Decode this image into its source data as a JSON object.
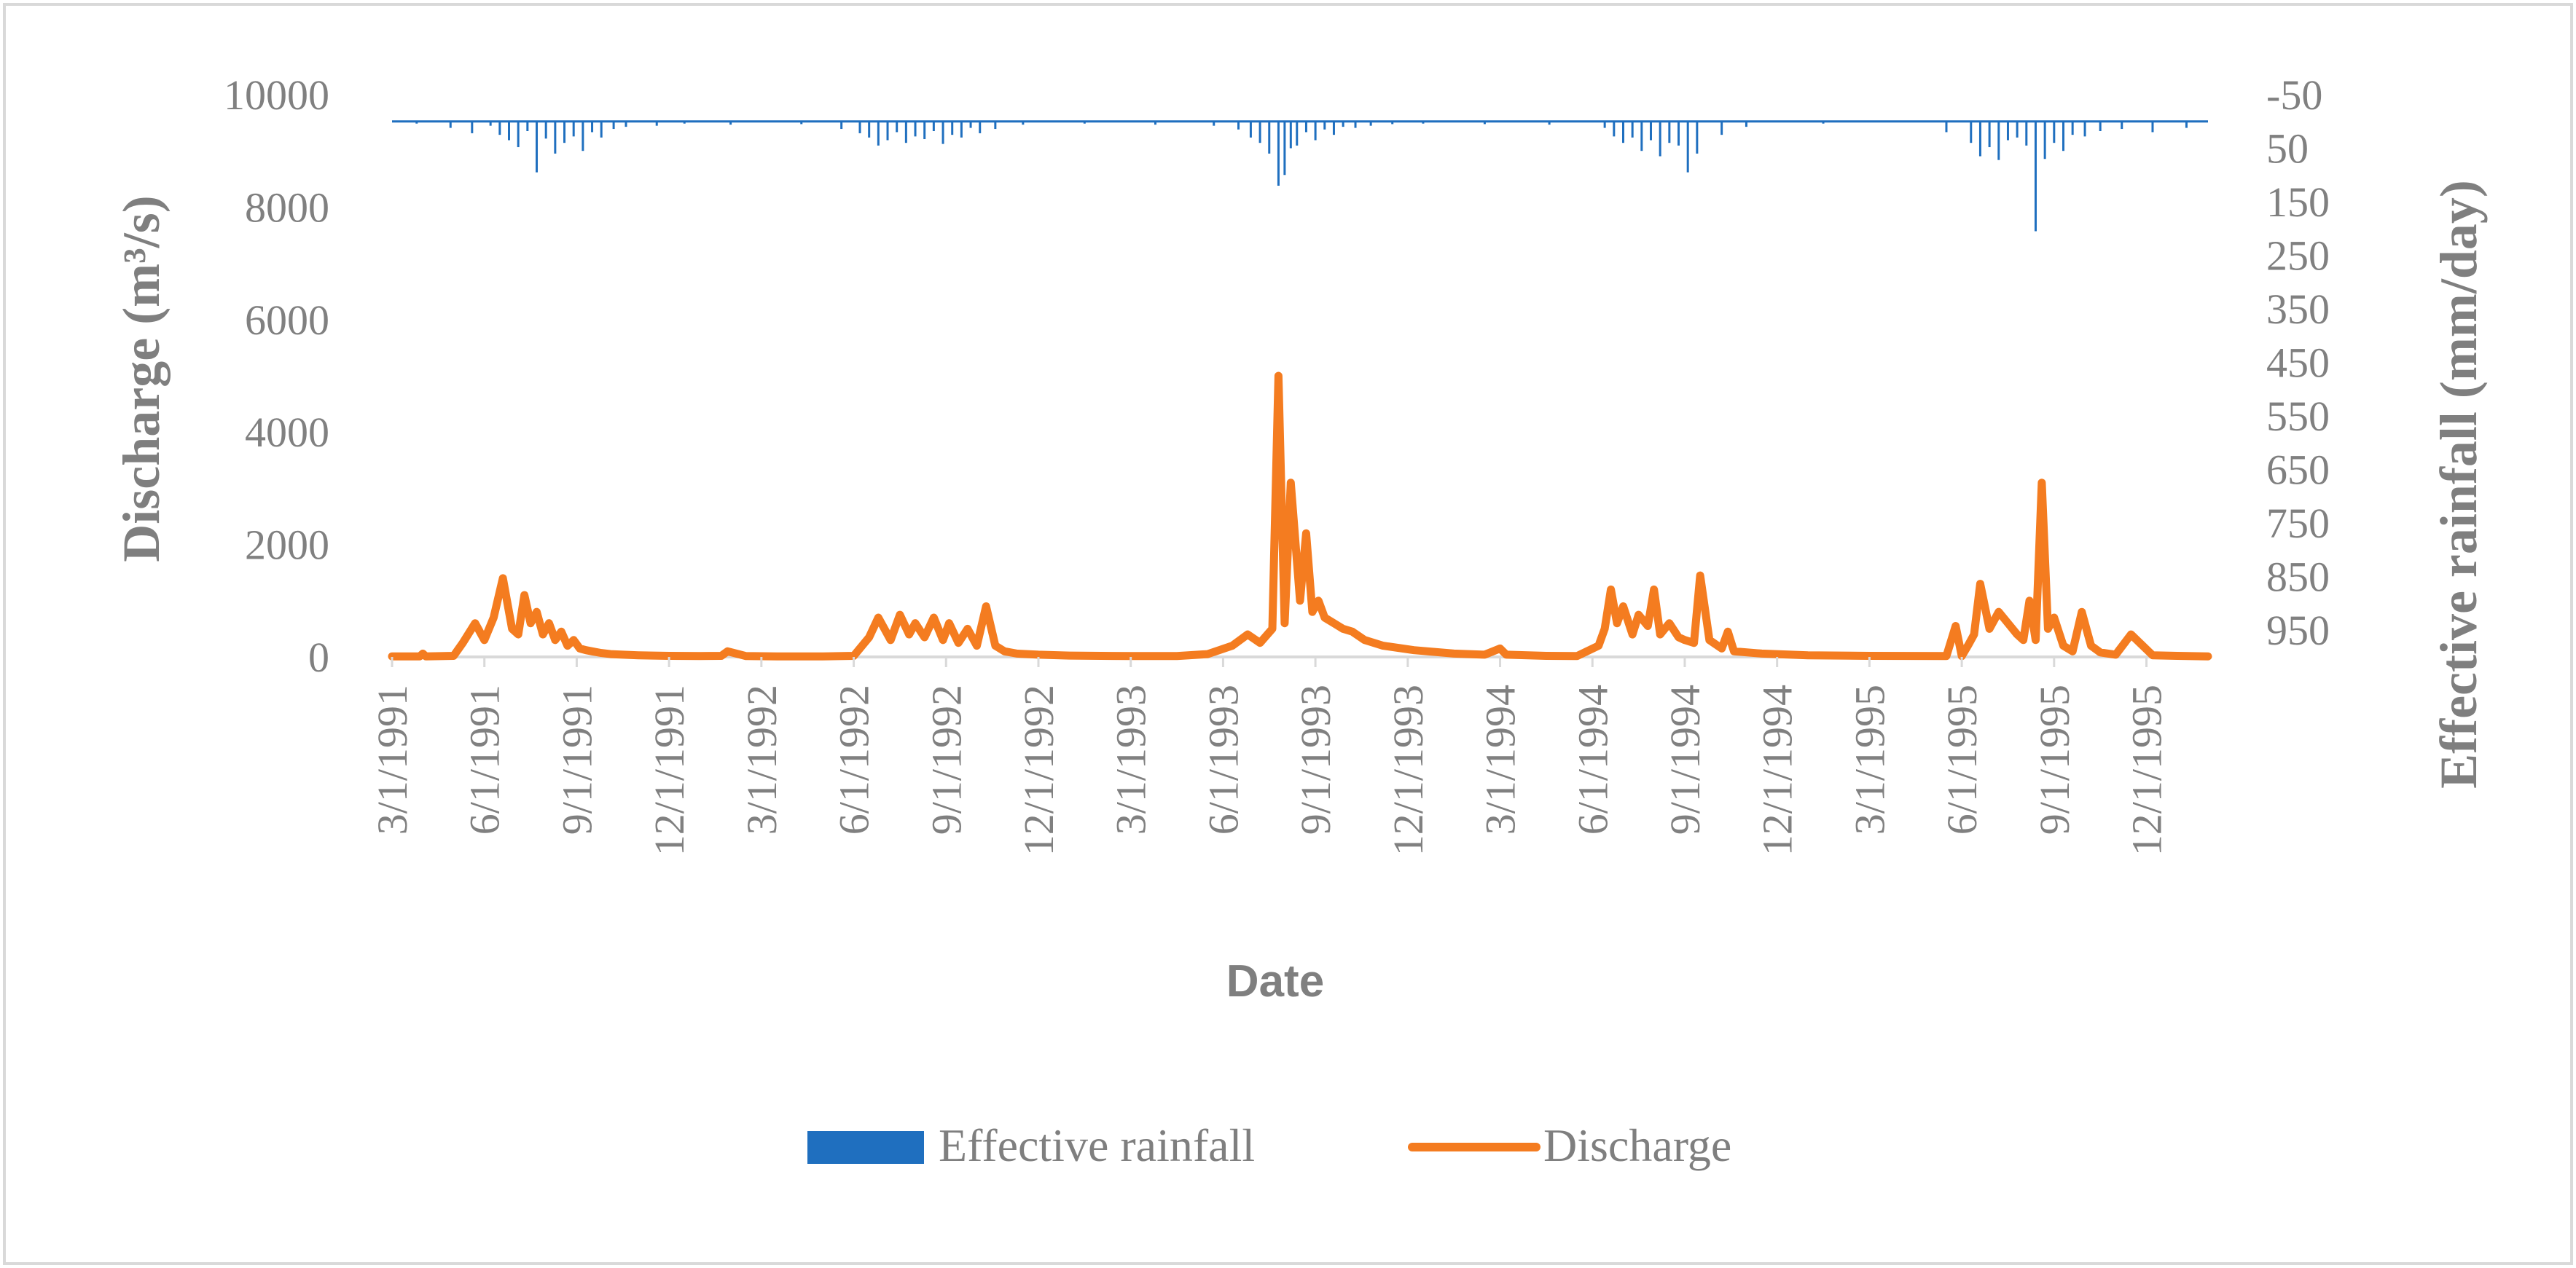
{
  "chart_data": {
    "type": "line",
    "title": "",
    "xlabel": "Date",
    "ylabel": "Discharge (m³/s)",
    "y2label": "Effective rainfall (mm/day)",
    "ylim": [
      0,
      10000
    ],
    "y2lim": [
      -50,
      1000
    ],
    "y2_inverted": true,
    "yticks": [
      "0",
      "2000",
      "4000",
      "6000",
      "8000",
      "10000"
    ],
    "y2ticks": [
      "-50",
      "50",
      "150",
      "250",
      "350",
      "450",
      "550",
      "650",
      "750",
      "850",
      "950"
    ],
    "xticks": [
      "3/1/1991",
      "6/1/1991",
      "9/1/1991",
      "12/1/1991",
      "3/1/1992",
      "6/1/1992",
      "9/1/1992",
      "12/1/1992",
      "3/1/1993",
      "6/1/1993",
      "9/1/1993",
      "12/1/1993",
      "3/1/1994",
      "6/1/1994",
      "9/1/1994",
      "12/1/1994",
      "3/1/1995",
      "6/1/1995",
      "9/1/1995",
      "12/1/1995"
    ],
    "xrange_months": [
      0,
      59
    ],
    "grid": false,
    "legend_position": "bottom",
    "series": [
      {
        "name": "Effective rainfall",
        "kind": "bar",
        "axis": "right",
        "color": "#1f6fbf",
        "x_months": [
          0.8,
          1.9,
          2.6,
          3.2,
          3.5,
          3.8,
          4.1,
          4.4,
          4.7,
          5.0,
          5.3,
          5.6,
          5.9,
          6.2,
          6.5,
          6.8,
          7.2,
          7.6,
          8.6,
          9.5,
          11.0,
          13.3,
          14.6,
          15.2,
          15.5,
          15.8,
          16.1,
          16.4,
          16.7,
          17.0,
          17.3,
          17.6,
          17.9,
          18.2,
          18.5,
          18.8,
          19.1,
          19.6,
          20.5,
          22.5,
          24.8,
          26.7,
          27.5,
          27.9,
          28.2,
          28.5,
          28.8,
          29.0,
          29.2,
          29.4,
          29.7,
          30.0,
          30.3,
          30.6,
          30.9,
          31.3,
          31.8,
          32.5,
          33.5,
          35.5,
          37.6,
          39.4,
          39.7,
          40.0,
          40.3,
          40.6,
          40.9,
          41.2,
          41.5,
          41.8,
          42.1,
          42.4,
          43.2,
          44.0,
          46.5,
          50.5,
          51.3,
          51.6,
          51.9,
          52.2,
          52.5,
          52.8,
          53.1,
          53.4,
          53.7,
          54.0,
          54.3,
          54.6,
          55.0,
          55.5,
          56.2,
          57.2,
          58.3
        ],
        "values": [
          4,
          12,
          22,
          8,
          25,
          35,
          48,
          18,
          95,
          32,
          60,
          40,
          28,
          55,
          20,
          30,
          14,
          10,
          8,
          4,
          6,
          5,
          14,
          22,
          30,
          45,
          35,
          20,
          40,
          28,
          33,
          18,
          42,
          25,
          30,
          12,
          22,
          14,
          6,
          4,
          6,
          8,
          15,
          30,
          40,
          60,
          120,
          100,
          50,
          45,
          20,
          35,
          15,
          25,
          10,
          12,
          8,
          5,
          4,
          5,
          6,
          12,
          28,
          40,
          30,
          55,
          35,
          65,
          40,
          45,
          95,
          60,
          25,
          10,
          4,
          20,
          40,
          65,
          48,
          72,
          35,
          30,
          45,
          205,
          70,
          40,
          55,
          25,
          28,
          18,
          14,
          20,
          12
        ]
      },
      {
        "name": "Discharge",
        "kind": "line",
        "axis": "left",
        "color": "#f47c20",
        "x_months": [
          0.0,
          0.9,
          1.0,
          1.1,
          2.0,
          2.3,
          2.7,
          3.0,
          3.3,
          3.6,
          3.9,
          4.1,
          4.3,
          4.5,
          4.7,
          4.9,
          5.1,
          5.3,
          5.5,
          5.7,
          5.9,
          6.1,
          6.3,
          6.5,
          6.8,
          7.1,
          7.5,
          8.0,
          9.0,
          10.0,
          10.7,
          10.9,
          11.5,
          12.5,
          14.0,
          15.0,
          15.5,
          15.8,
          16.2,
          16.5,
          16.8,
          17.0,
          17.3,
          17.6,
          17.9,
          18.1,
          18.4,
          18.7,
          19.0,
          19.3,
          19.6,
          19.9,
          20.3,
          21.0,
          22.0,
          24.0,
          25.5,
          26.5,
          27.3,
          27.8,
          28.2,
          28.6,
          28.8,
          29.0,
          29.2,
          29.5,
          29.7,
          29.9,
          30.1,
          30.3,
          30.6,
          30.9,
          31.2,
          31.6,
          32.2,
          33.2,
          34.5,
          35.5,
          36.0,
          36.2,
          37.5,
          38.5,
          39.2,
          39.4,
          39.6,
          39.8,
          40.0,
          40.3,
          40.5,
          40.8,
          41.0,
          41.2,
          41.5,
          41.8,
          42.0,
          42.3,
          42.5,
          42.8,
          43.2,
          43.4,
          43.6,
          44.5,
          46.0,
          48.0,
          50.5,
          50.8,
          51.0,
          51.2,
          51.4,
          51.6,
          51.9,
          52.2,
          52.5,
          52.8,
          53.0,
          53.2,
          53.4,
          53.6,
          53.8,
          54.0,
          54.3,
          54.6,
          54.9,
          55.2,
          55.5,
          56.0,
          56.5,
          57.2,
          58.0,
          59.0
        ],
        "values": [
          10,
          10,
          60,
          10,
          20,
          250,
          600,
          300,
          700,
          1400,
          500,
          400,
          1100,
          600,
          800,
          400,
          600,
          300,
          450,
          200,
          300,
          150,
          120,
          100,
          70,
          50,
          40,
          30,
          20,
          15,
          20,
          100,
          15,
          10,
          10,
          20,
          350,
          700,
          300,
          750,
          400,
          600,
          350,
          700,
          300,
          600,
          250,
          500,
          200,
          900,
          200,
          100,
          60,
          40,
          25,
          15,
          15,
          50,
          200,
          400,
          250,
          500,
          5000,
          600,
          3100,
          1000,
          2200,
          800,
          1000,
          700,
          600,
          500,
          450,
          300,
          200,
          120,
          60,
          40,
          150,
          40,
          20,
          15,
          200,
          500,
          1200,
          600,
          900,
          400,
          750,
          550,
          1200,
          400,
          600,
          350,
          300,
          250,
          1450,
          300,
          150,
          450,
          100,
          60,
          30,
          20,
          15,
          550,
          15,
          200,
          400,
          1300,
          500,
          800,
          600,
          400,
          300,
          1000,
          300,
          3100,
          500,
          700,
          200,
          100,
          800,
          200,
          80,
          40,
          400,
          30,
          20,
          10
        ]
      }
    ]
  }
}
